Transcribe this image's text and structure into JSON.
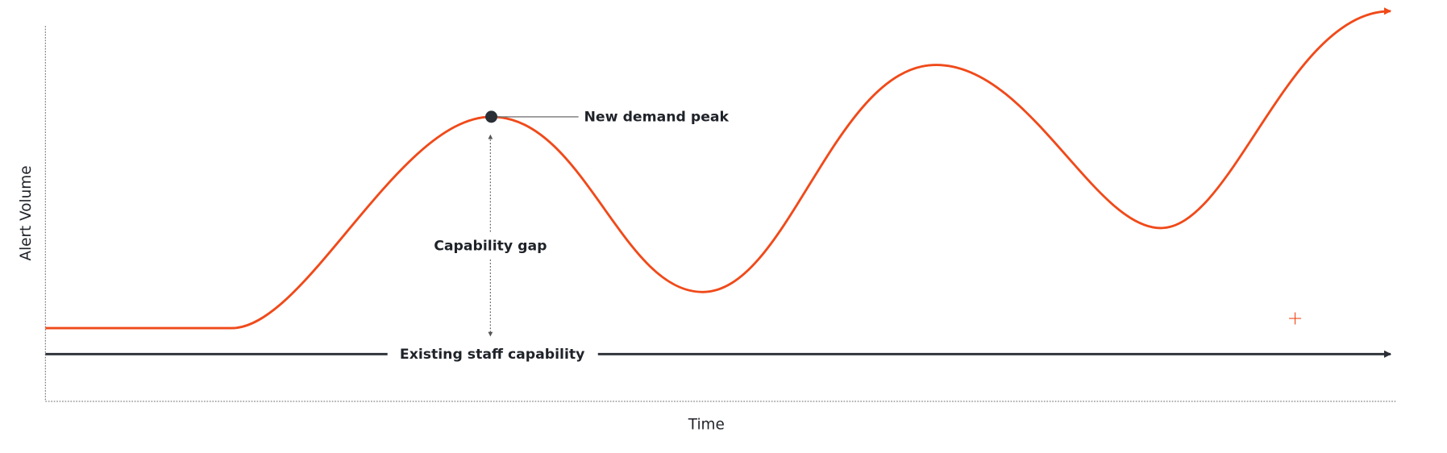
{
  "axes": {
    "y_label": "Alert Volume",
    "x_label": "Time"
  },
  "annotations": {
    "peak": "New demand peak",
    "gap": "Capability gap",
    "baseline": "Existing staff capability"
  }
}
